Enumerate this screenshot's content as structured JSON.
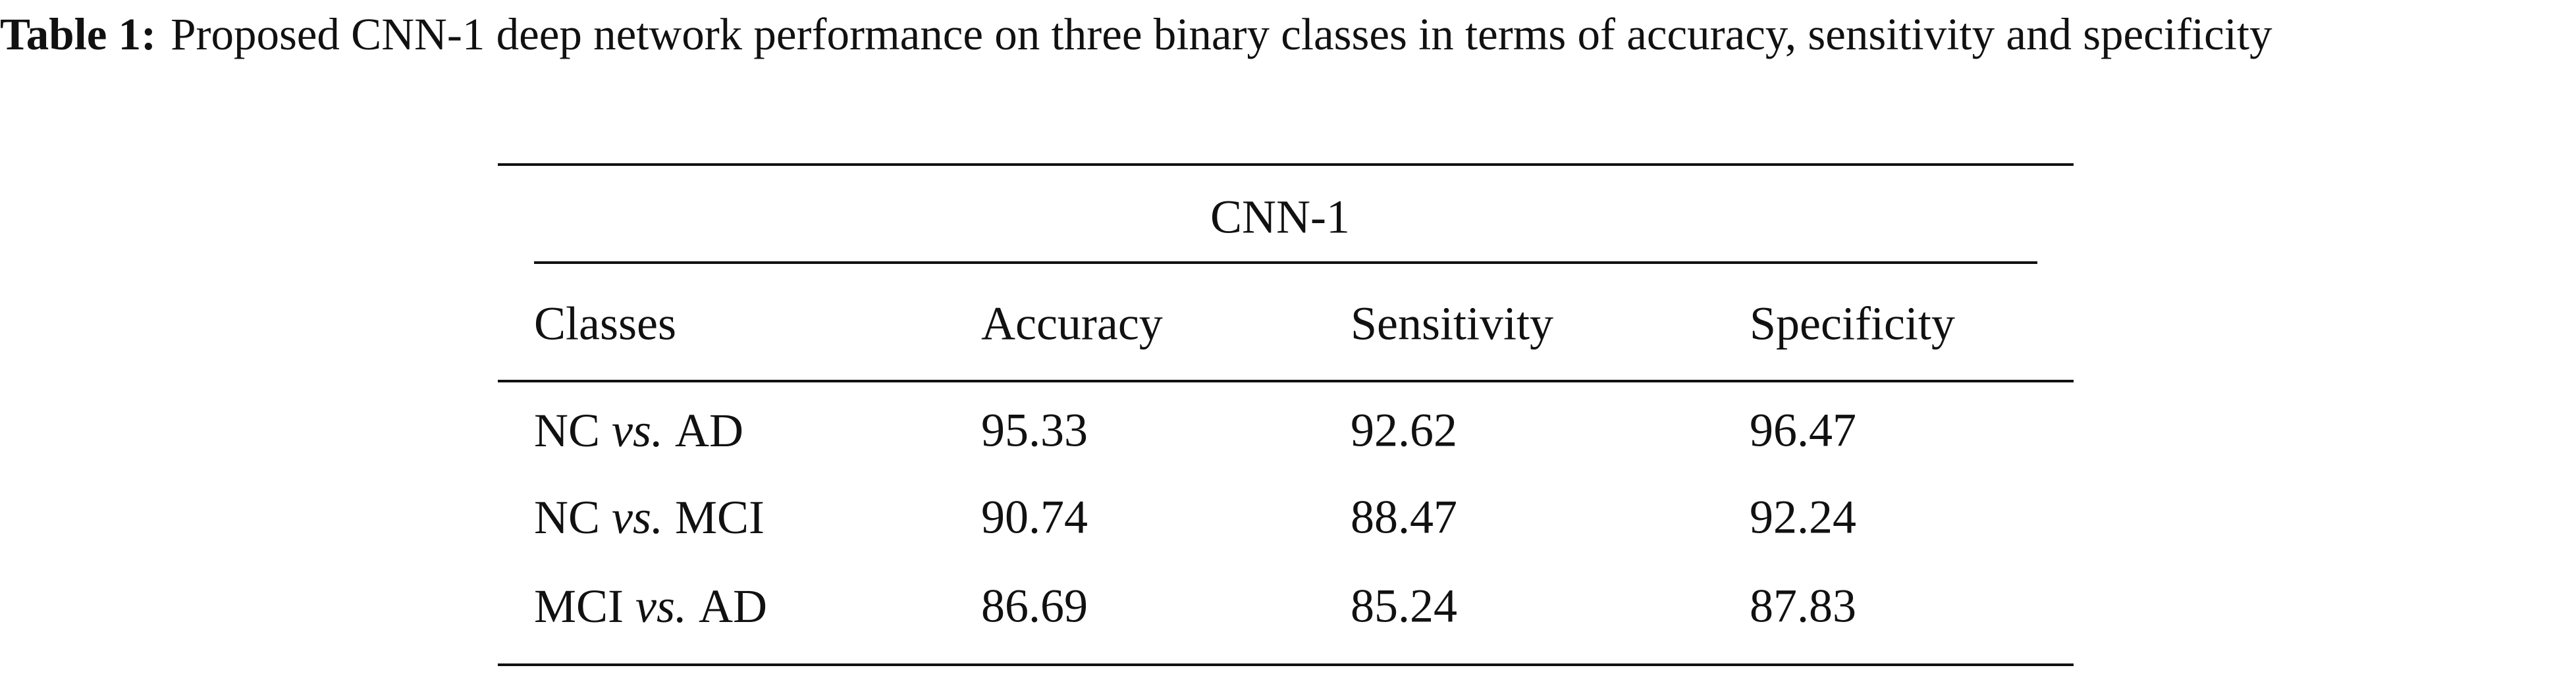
{
  "caption": {
    "label": "Table 1:",
    "text": "Proposed CNN-1 deep network performance on three binary classes in terms of accuracy, sensitivity and specificity"
  },
  "table": {
    "group_header": "CNN-1",
    "columns": [
      "Classes",
      "Accuracy",
      "Sensitivity",
      "Specificity"
    ],
    "rows": [
      [
        {
          "left": "NC",
          "vs": "vs.",
          "right": "AD"
        },
        95.33,
        92.62,
        96.47
      ],
      [
        {
          "left": "NC",
          "vs": "vs.",
          "right": "MCI"
        },
        90.74,
        88.47,
        92.24
      ],
      [
        {
          "left": "MCI",
          "vs": "vs.",
          "right": "AD"
        },
        86.69,
        85.24,
        87.83
      ]
    ]
  }
}
